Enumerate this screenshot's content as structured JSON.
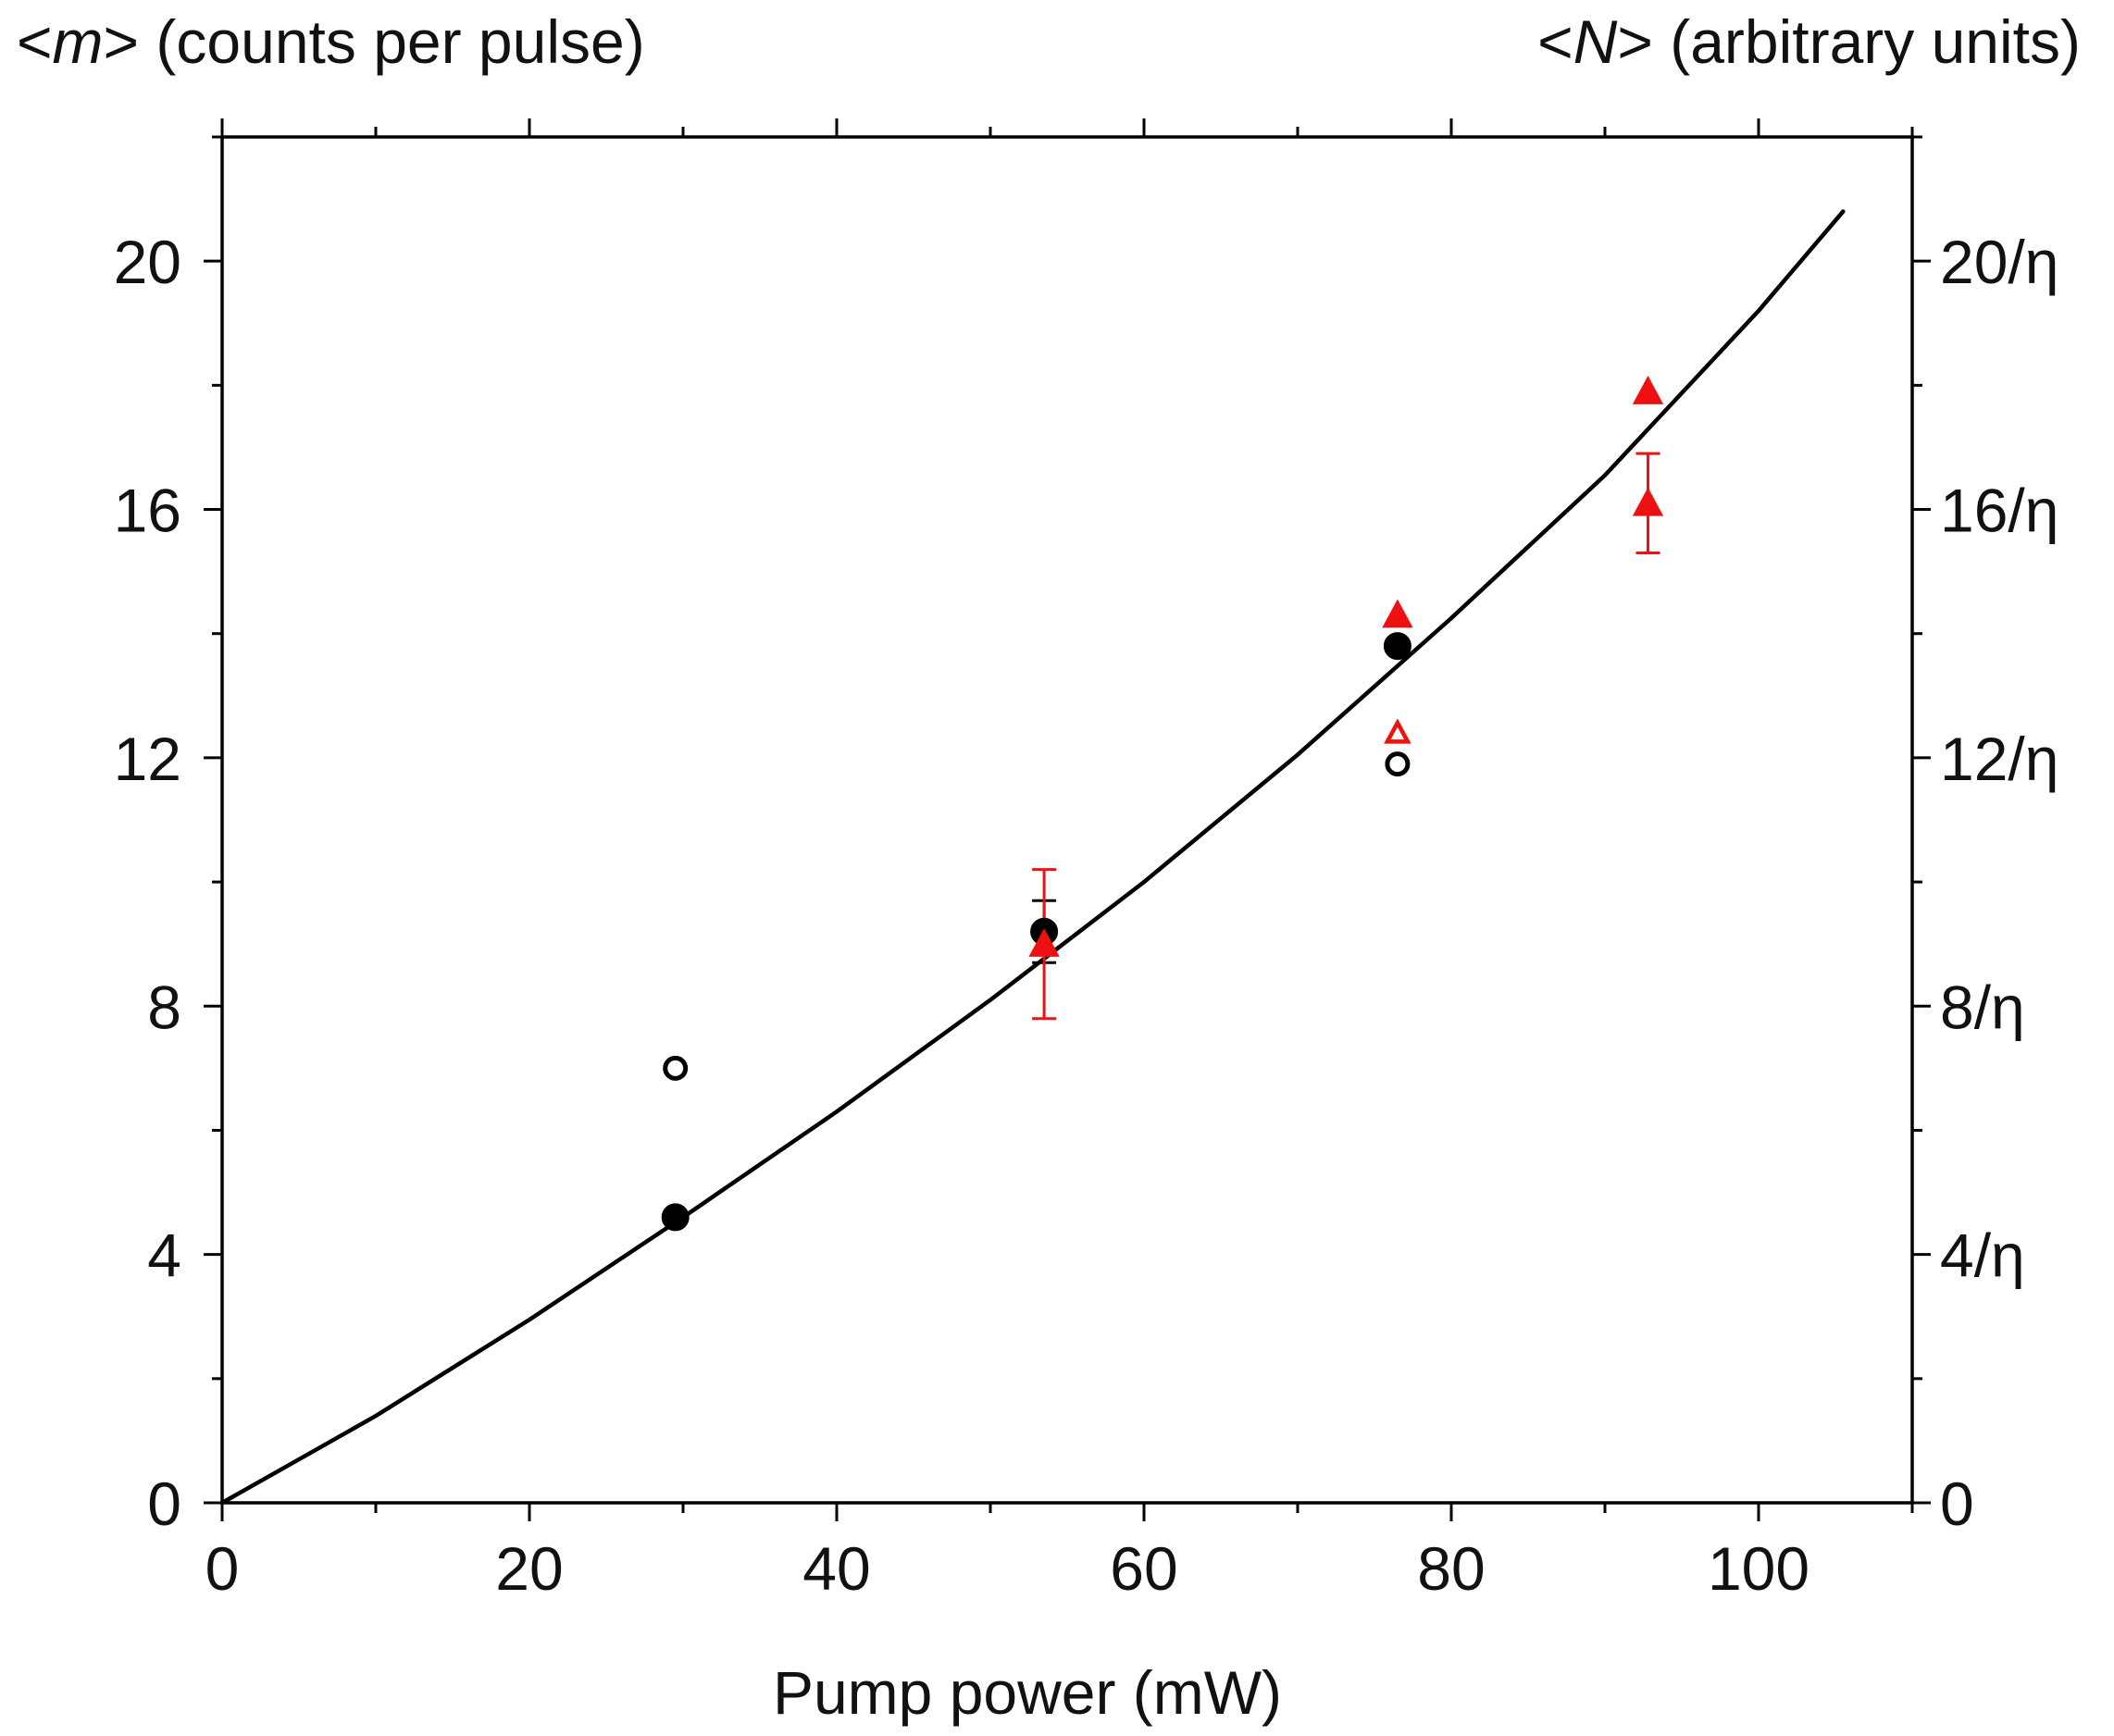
{
  "chart_data": {
    "type": "scatter",
    "title": "",
    "xlabel": "Pump power (mW)",
    "ylabel_left_var": "m",
    "ylabel_left_rest": "(counts per pulse)",
    "ylabel_right_var": "N",
    "ylabel_right_rest": "(arbitrary units)",
    "xlim": [
      0,
      110
    ],
    "ylim": [
      0,
      22
    ],
    "xticks": [
      0,
      20,
      40,
      60,
      80,
      100
    ],
    "xtick_labels": [
      "0",
      "20",
      "40",
      "60",
      "80",
      "100"
    ],
    "yticks": [
      0,
      4,
      8,
      12,
      16,
      20
    ],
    "ytick_labels_left": [
      "0",
      "4",
      "8",
      "12",
      "16",
      "20"
    ],
    "ytick_labels_right": [
      "0",
      "4/η",
      "8/η",
      "12/η",
      "16/η",
      "20/η"
    ],
    "series": [
      {
        "name": "filled black circles",
        "marker": "circle-filled",
        "color": "#000000",
        "x": [
          29.5,
          53.5,
          76.5
        ],
        "y": [
          4.6,
          9.2,
          13.8
        ],
        "yerr": [
          0,
          0.5,
          0
        ]
      },
      {
        "name": "open black circles",
        "marker": "circle-open",
        "color": "#000000",
        "x": [
          29.5,
          76.5
        ],
        "y": [
          7.0,
          11.9
        ]
      },
      {
        "name": "filled red triangles",
        "marker": "triangle-filled",
        "color": "#ee1111",
        "x": [
          53.5,
          76.5,
          92.8,
          92.8
        ],
        "y": [
          9.0,
          14.3,
          17.9,
          16.1
        ],
        "yerr": [
          1.2,
          0,
          0,
          0.8
        ]
      },
      {
        "name": "open red triangles",
        "marker": "triangle-open",
        "color": "#ee1111",
        "x": [
          76.5
        ],
        "y": [
          12.4
        ]
      },
      {
        "name": "fit",
        "type": "line",
        "color": "#000000",
        "x": [
          0,
          10,
          20,
          30,
          40,
          50,
          60,
          70,
          80,
          90,
          100,
          105.5
        ],
        "y": [
          0,
          1.4,
          2.95,
          4.6,
          6.3,
          8.1,
          10.0,
          12.05,
          14.25,
          16.55,
          19.2,
          20.8
        ]
      }
    ]
  }
}
